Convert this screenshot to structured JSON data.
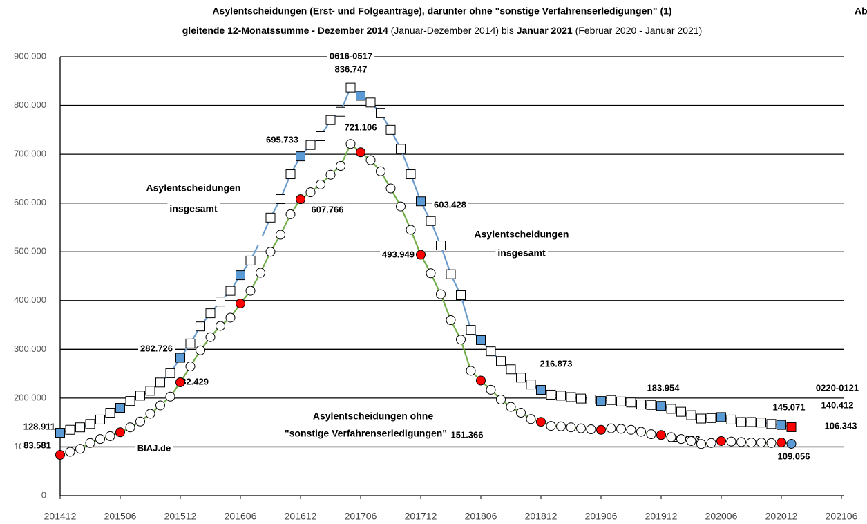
{
  "chart_data": {
    "type": "line",
    "title": "Asylentscheidungen (Erst- und Folgeanträge), darunter ohne \"sonstige Verfahrenserledigungen\" (1)",
    "subtitle": [
      "gleitende 12-Monatssumme - Dezember 2014",
      " (Januar-Dezember 2014) bis ",
      "Januar 2021",
      " (Februar 2020 - Januar 2021)"
    ],
    "corner_text": "Ab",
    "categories": [
      "201412",
      null,
      null,
      null,
      null,
      null,
      "201506",
      null,
      null,
      null,
      null,
      null,
      "201512",
      null,
      null,
      null,
      null,
      null,
      "201606",
      null,
      null,
      null,
      null,
      null,
      "201612",
      null,
      null,
      null,
      null,
      null,
      "201706",
      null,
      null,
      null,
      null,
      null,
      "201712",
      null,
      null,
      null,
      null,
      null,
      "201806",
      null,
      null,
      null,
      null,
      null,
      "201812",
      null,
      null,
      null,
      null,
      null,
      "201906",
      null,
      null,
      null,
      null,
      null,
      "201912",
      null,
      null,
      null,
      null,
      null,
      "202006",
      null,
      null,
      null,
      null,
      null,
      "202012",
      null,
      null,
      null,
      null,
      null,
      "202106"
    ],
    "ylim": [
      0,
      900000
    ],
    "yticks": [
      0,
      {
        "value": 100000,
        "label": "100.000"
      },
      {
        "value": 200000,
        "label": "200.000"
      },
      {
        "value": 300000,
        "label": "300.000"
      },
      {
        "value": 400000,
        "label": "400.000"
      },
      {
        "value": 500000,
        "label": "500.000"
      },
      {
        "value": 600000,
        "label": "600.000"
      },
      {
        "value": 700000,
        "label": "700.000"
      },
      {
        "value": 800000,
        "label": "800.000"
      },
      {
        "value": 900000,
        "label": "900.000"
      }
    ],
    "grid": true,
    "highlight_every": 6,
    "series": [
      {
        "color": "#6a9bcd",
        "marker": "square",
        "marker_color": "#ffffff",
        "highlight_color": "#5b9bd5",
        "last_color": "#ff0000",
        "values": [
          128911,
          135000,
          140000,
          147000,
          156000,
          170000,
          180000,
          194000,
          205000,
          215000,
          232000,
          251000,
          282726,
          312000,
          347000,
          374000,
          398000,
          420000,
          452000,
          482000,
          523000,
          570000,
          608000,
          659000,
          695733,
          719000,
          737000,
          770000,
          787000,
          836747,
          820000,
          806000,
          785000,
          750000,
          711000,
          659000,
          603428,
          563000,
          513000,
          454000,
          411000,
          340000,
          319000,
          296000,
          276000,
          259000,
          242000,
          228000,
          216873,
          207000,
          205000,
          202000,
          199000,
          197000,
          194000,
          196000,
          193000,
          191000,
          187000,
          186000,
          183954,
          178000,
          172000,
          165000,
          158000,
          159000,
          161000,
          156000,
          151000,
          151000,
          150000,
          147000,
          145071,
          140412,
          null,
          null,
          null,
          null,
          null
        ],
        "value_labels": [
          "128.911",
          null,
          null,
          null,
          null,
          null,
          null,
          null,
          null,
          null,
          null,
          null,
          "282.726",
          null,
          null,
          null,
          null,
          null,
          null,
          null,
          null,
          null,
          null,
          null,
          "695.733",
          null,
          null,
          null,
          null,
          "836.747",
          null,
          null,
          null,
          null,
          null,
          null,
          "603.428",
          null,
          null,
          null,
          null,
          null,
          null,
          null,
          null,
          null,
          null,
          null,
          "216.873",
          null,
          null,
          null,
          null,
          null,
          null,
          null,
          null,
          null,
          null,
          null,
          "183.954",
          null,
          null,
          null,
          null,
          null,
          null,
          null,
          null,
          null,
          null,
          null,
          "145.071",
          "140.412",
          null,
          null,
          null,
          null,
          null
        ]
      },
      {
        "color": "#70ad47",
        "marker": "circle",
        "marker_color": "#ffffff",
        "highlight_color": "#ff0000",
        "last_color": "#5b9bd5",
        "values": [
          83581,
          90000,
          96000,
          108000,
          116000,
          122000,
          130000,
          140000,
          152000,
          168000,
          185000,
          203000,
          232429,
          265000,
          298000,
          325000,
          348000,
          365000,
          394000,
          420000,
          457000,
          500000,
          535000,
          577000,
          607766,
          622000,
          638000,
          658000,
          676000,
          721106,
          704000,
          688000,
          665000,
          630000,
          593000,
          545000,
          493949,
          456000,
          413000,
          360000,
          320000,
          256000,
          236000,
          217000,
          197000,
          182000,
          170000,
          157000,
          151366,
          143000,
          142000,
          140000,
          138000,
          136000,
          135000,
          138000,
          137000,
          135000,
          131000,
          126000,
          124363,
          120000,
          116000,
          112000,
          106000,
          108000,
          112000,
          111000,
          110000,
          109000,
          109000,
          108000,
          109056,
          106343,
          null,
          null,
          null,
          null,
          null
        ],
        "value_labels": [
          "83.581",
          null,
          null,
          null,
          null,
          null,
          null,
          null,
          null,
          null,
          null,
          null,
          "232.429",
          null,
          null,
          null,
          null,
          null,
          null,
          null,
          null,
          null,
          null,
          null,
          "607.766",
          null,
          null,
          null,
          null,
          "721.106",
          null,
          null,
          null,
          null,
          null,
          null,
          "493.949",
          null,
          null,
          null,
          null,
          null,
          null,
          null,
          null,
          null,
          null,
          null,
          "151.366",
          null,
          null,
          null,
          null,
          null,
          null,
          null,
          null,
          null,
          null,
          null,
          "124.363",
          null,
          null,
          null,
          null,
          null,
          null,
          null,
          null,
          null,
          null,
          null,
          "109.056",
          "106.343",
          null,
          null,
          null,
          null,
          null
        ]
      }
    ],
    "annotations": [
      "Asylentscheidungen",
      "insgesamt",
      "Asylentscheidungen",
      "insgesamt",
      "Asylentscheidungen ohne",
      "\"sonstige Verfahrenserledigungen\" (1)",
      "BIAJ.de",
      "0616-0517",
      "0220-0121"
    ],
    "annotation_colors": [
      "#000000",
      "#000000",
      "#000000",
      "#000000",
      "#000000",
      "#000000",
      "#c00000",
      "#000000",
      "#000000"
    ]
  }
}
